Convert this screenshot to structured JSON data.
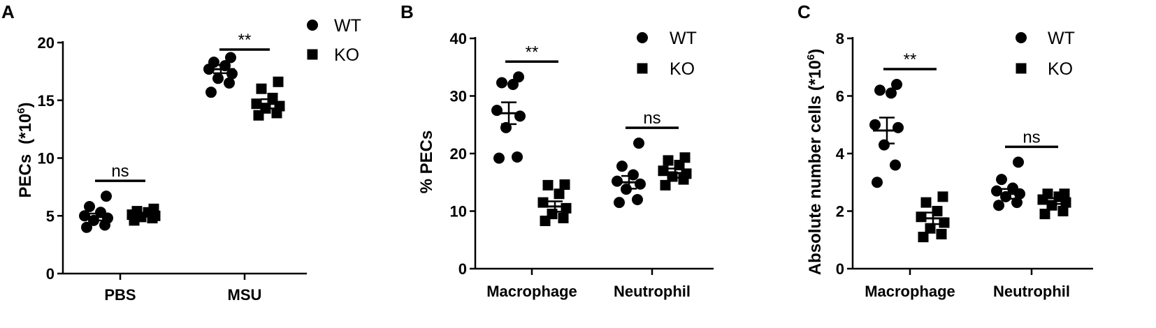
{
  "chart_data": [
    {
      "type": "scatter",
      "panel_label": "A",
      "ylabel_main": "PECs",
      "ylabel_unit": "(*10",
      "ylabel_exp": "6",
      "ylabel_close": ")",
      "ylim": [
        0,
        20
      ],
      "yticks": [
        0,
        5,
        10,
        15,
        20
      ],
      "categories": [
        "PBS",
        "MSU"
      ],
      "legend": {
        "position": "top-right",
        "entries": [
          "WT",
          "KO"
        ]
      },
      "series": [
        {
          "name": "WT",
          "marker": "circle",
          "points": [
            [
              4.0,
              4.2,
              4.6,
              4.8,
              5.0,
              5.3,
              5.8,
              6.7
            ],
            [
              15.7,
              16.5,
              16.9,
              17.3,
              17.7,
              18.0,
              18.3,
              18.7
            ]
          ],
          "mean": [
            4.9,
            17.7
          ],
          "sem": [
            0.3,
            0.35
          ]
        },
        {
          "name": "KO",
          "marker": "square",
          "points": [
            [
              4.6,
              4.8,
              4.9,
              5.0,
              5.1,
              5.3,
              5.4,
              5.6
            ],
            [
              13.7,
              13.9,
              14.3,
              14.5,
              14.7,
              15.2,
              16.0,
              16.6
            ]
          ],
          "mean": [
            5.1,
            14.7
          ],
          "sem": [
            0.15,
            0.4
          ]
        }
      ],
      "significance": [
        "ns",
        "**"
      ]
    },
    {
      "type": "scatter",
      "panel_label": "B",
      "ylabel": "% PECs",
      "ylim": [
        0,
        40
      ],
      "yticks": [
        0,
        10,
        20,
        30,
        40
      ],
      "categories": [
        "Macrophage",
        "Neutrophil"
      ],
      "legend": {
        "position": "top-right",
        "entries": [
          "WT",
          "KO"
        ]
      },
      "series": [
        {
          "name": "WT",
          "marker": "circle",
          "points": [
            [
              19.2,
              19.4,
              24.5,
              26.5,
              27.5,
              32.0,
              32.3,
              33.3
            ],
            [
              11.5,
              12.0,
              13.8,
              14.7,
              15.2,
              16.3,
              17.8,
              21.8
            ]
          ],
          "mean": [
            27.0,
            15.0
          ],
          "sem": [
            1.9,
            1.1
          ]
        },
        {
          "name": "KO",
          "marker": "square",
          "points": [
            [
              8.3,
              8.8,
              9.5,
              10.5,
              11.5,
              13.0,
              14.5,
              14.6
            ],
            [
              14.5,
              15.5,
              16.0,
              16.5,
              17.0,
              18.0,
              18.8,
              19.3
            ]
          ],
          "mean": [
            10.8,
            16.6
          ],
          "sem": [
            0.9,
            0.8
          ]
        }
      ],
      "significance": [
        "**",
        "ns"
      ]
    },
    {
      "type": "scatter",
      "panel_label": "C",
      "ylabel_main": "Absolute number cells (*10",
      "ylabel_exp": "6",
      "ylabel_close": ")",
      "ylim": [
        0,
        8
      ],
      "yticks": [
        0,
        2,
        4,
        6,
        8
      ],
      "categories": [
        "Macrophage",
        "Neutrophil"
      ],
      "legend": {
        "position": "top-right",
        "entries": [
          "WT",
          "KO"
        ]
      },
      "series": [
        {
          "name": "WT",
          "marker": "circle",
          "points": [
            [
              3.0,
              3.6,
              4.3,
              4.9,
              5.0,
              6.1,
              6.2,
              6.4
            ],
            [
              2.2,
              2.3,
              2.5,
              2.6,
              2.7,
              2.8,
              3.1,
              3.7
            ]
          ],
          "mean": [
            4.8,
            2.6
          ],
          "sem": [
            0.45,
            0.17
          ]
        },
        {
          "name": "KO",
          "marker": "square",
          "points": [
            [
              1.1,
              1.2,
              1.4,
              1.6,
              1.8,
              2.0,
              2.3,
              2.5
            ],
            [
              1.9,
              2.0,
              2.2,
              2.3,
              2.4,
              2.5,
              2.6,
              2.6
            ]
          ],
          "mean": [
            1.75,
            2.35
          ],
          "sem": [
            0.2,
            0.1
          ]
        }
      ],
      "significance": [
        "**",
        "ns"
      ]
    }
  ]
}
